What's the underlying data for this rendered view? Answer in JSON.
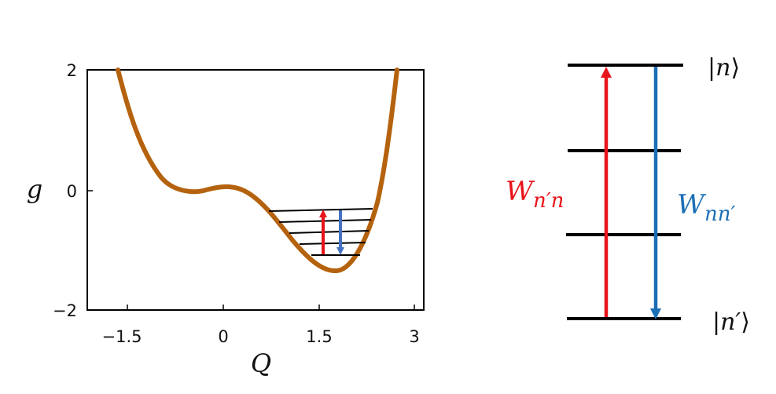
{
  "colors": {
    "curve": "#B5620E",
    "up_arrow": "#E8141B",
    "down_arrow_left": "#4472C4",
    "down_arrow_right": "#1B6FB5",
    "level_line": "#000000"
  },
  "chart_data": {
    "type": "line",
    "xlabel": "Q",
    "ylabel": "g",
    "xlim": [
      -2.3,
      3.1
    ],
    "ylim": [
      -2,
      2
    ],
    "xticks": [
      "−1.5",
      "0",
      "1.5",
      "3"
    ],
    "yticks": [
      "2",
      "0",
      "−2"
    ],
    "series": [
      {
        "x": [
          -1.15,
          -1.0,
          -0.75,
          -0.5,
          -0.25,
          0.0,
          0.25,
          0.5,
          0.75,
          1.0,
          1.25,
          1.5,
          1.75,
          2.0,
          2.25,
          2.5,
          2.75,
          3.0
        ],
        "y": [
          2.0,
          1.05,
          0.2,
          -0.08,
          -0.02,
          0.03,
          -0.04,
          -0.25,
          -0.55,
          -0.88,
          -1.12,
          -1.28,
          -1.32,
          -1.15,
          -0.55,
          0.55,
          2.0,
          2.0
        ]
      }
    ]
  },
  "levels_diagram": {
    "top_state": {
      "prefix": "|",
      "symbol": "n",
      "suffix": "⟩"
    },
    "bottom_state": {
      "prefix": "|",
      "symbol": "n′",
      "suffix": "⟩"
    },
    "rate_up": {
      "base": "W",
      "sub": "n′n"
    },
    "rate_down": {
      "base": "W",
      "sub": "nn′"
    }
  }
}
